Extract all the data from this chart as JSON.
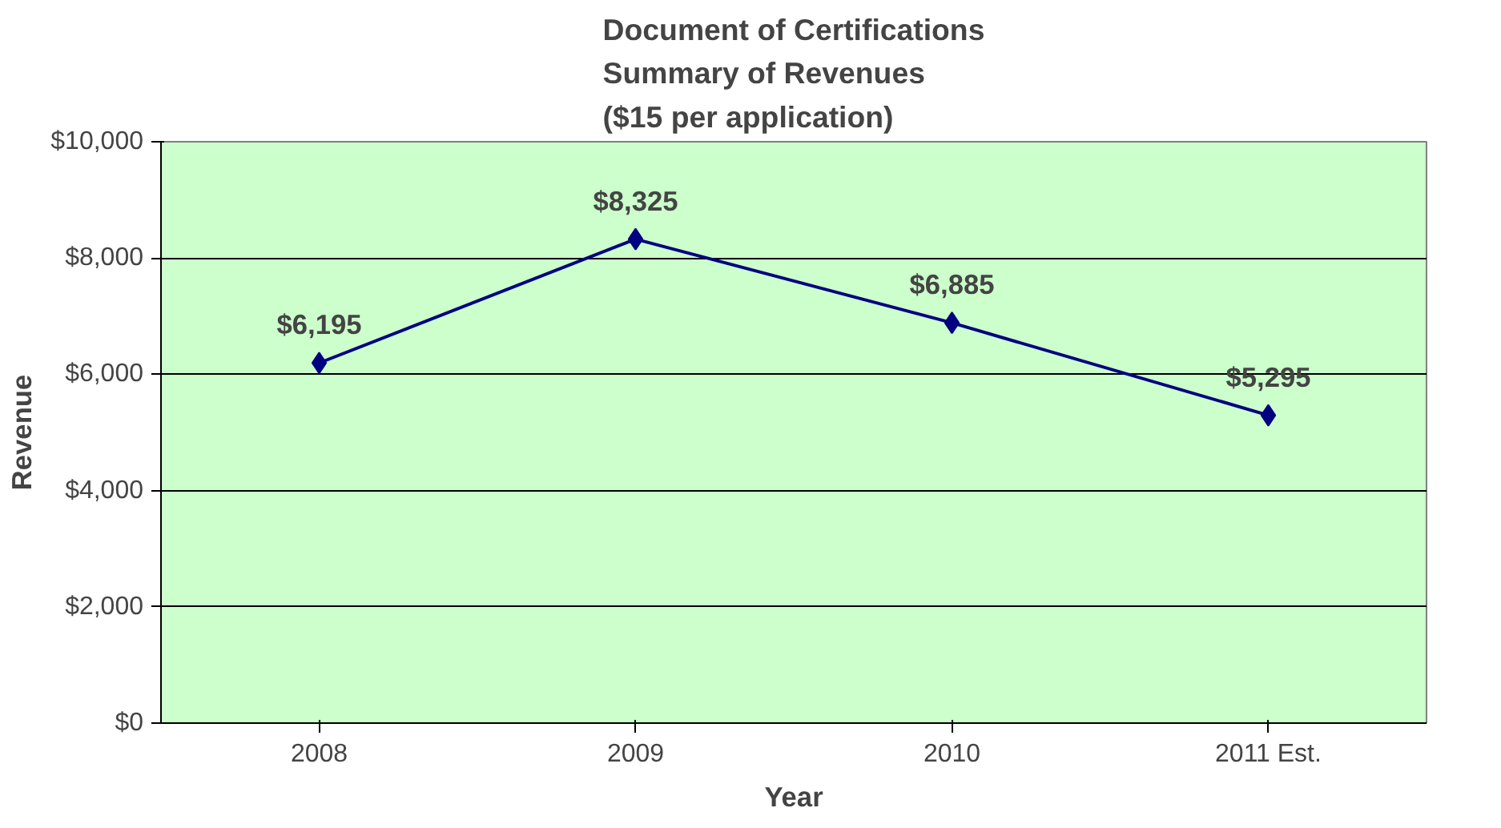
{
  "chart_data": {
    "type": "line",
    "title": "Document of Certifications\nSummary of Revenues\n($15 per application)",
    "xlabel": "Year",
    "ylabel": "Revenue",
    "categories": [
      "2008",
      "2009",
      "2010",
      "2011 Est."
    ],
    "series": [
      {
        "color": "#000080",
        "values": [
          6195,
          8325,
          6885,
          5295
        ]
      }
    ],
    "value_labels": [
      "$6,195",
      "$8,325",
      "$6,885",
      "$5,295"
    ],
    "ylim": [
      0,
      10000
    ],
    "yticks": [
      {
        "value": 0,
        "label": "$0"
      },
      {
        "value": 2000,
        "label": "$2,000"
      },
      {
        "value": 4000,
        "label": "$4,000"
      },
      {
        "value": 6000,
        "label": "$6,000"
      },
      {
        "value": 8000,
        "label": "$8,000"
      },
      {
        "value": 10000,
        "label": "$10,000"
      }
    ],
    "grid": "y",
    "marker": "diamond",
    "line_style": "solid"
  }
}
